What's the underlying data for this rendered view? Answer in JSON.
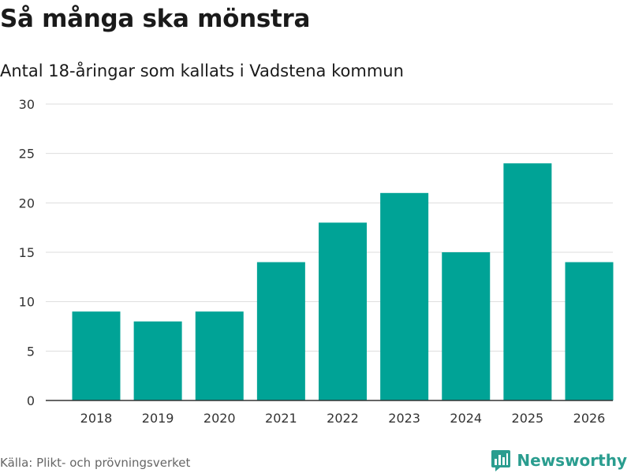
{
  "title": "Så många ska mönstra",
  "subtitle": "Antal 18-åringar som kallats i Vadstena kommun",
  "source": "Källa: Plikt- och prövningsverket",
  "brand": {
    "name": "Newsworthy",
    "icon": "bar-chart-logo-icon"
  },
  "colors": {
    "bar": "#00a396",
    "grid": "#dddddd",
    "axis": "#333333",
    "brand": "#2a9d8f"
  },
  "chart_data": {
    "type": "bar",
    "title": "Så många ska mönstra",
    "subtitle": "Antal 18-åringar som kallats i Vadstena kommun",
    "xlabel": "",
    "ylabel": "",
    "categories": [
      "2018",
      "2019",
      "2020",
      "2021",
      "2022",
      "2023",
      "2024",
      "2025",
      "2026"
    ],
    "values": [
      9,
      8,
      9,
      14,
      18,
      21,
      15,
      24,
      14
    ],
    "ylim": [
      0,
      30
    ],
    "yticks": [
      0,
      5,
      10,
      15,
      20,
      25,
      30
    ],
    "grid": true,
    "legend": "none"
  }
}
